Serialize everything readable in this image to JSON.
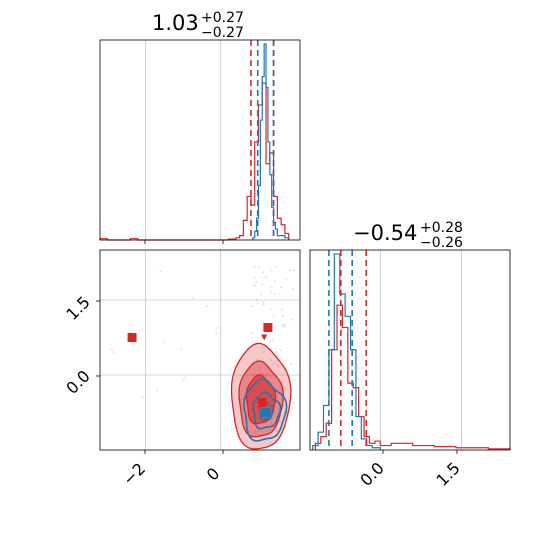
{
  "chart_data": {
    "type": "corner",
    "grid": true,
    "colors": {
      "red": "#d62728",
      "blue": "#1f77b4",
      "grid": "#b0b0b0"
    },
    "parameters": [
      {
        "title_value": "1.03",
        "title_plus": "+0.27",
        "title_minus": "−0.27"
      },
      {
        "title_value": "−0.54",
        "title_plus": "+0.28",
        "title_minus": "−0.26"
      }
    ],
    "panels": {
      "hist_param1": {
        "xlim": [
          -3.2,
          2.1
        ],
        "grid_x": [
          -2,
          0
        ],
        "quantiles_red": [
          0.8,
          1.4
        ],
        "quantiles_blue": [
          0.98,
          1.4
        ],
        "series": [
          {
            "name": "",
            "color": "red",
            "bins": [
              [
                -3.2,
                -3.0,
                0.006
              ],
              [
                -2.4,
                -2.2,
                0.006
              ],
              [
                0.2,
                0.4,
                0.004
              ],
              [
                0.4,
                0.5,
                0.01
              ],
              [
                0.5,
                0.6,
                0.02
              ],
              [
                0.6,
                0.7,
                0.09
              ],
              [
                0.7,
                0.8,
                0.2
              ],
              [
                0.8,
                0.9,
                0.16
              ],
              [
                0.9,
                1.0,
                0.45
              ],
              [
                1.0,
                1.1,
                0.62
              ],
              [
                1.1,
                1.2,
                0.72
              ],
              [
                1.2,
                1.3,
                0.35
              ],
              [
                1.3,
                1.4,
                0.4
              ],
              [
                1.4,
                1.5,
                0.2
              ],
              [
                1.5,
                1.6,
                0.1
              ],
              [
                1.6,
                1.7,
                0.07
              ],
              [
                1.7,
                1.8,
                0.03
              ]
            ]
          },
          {
            "name": "",
            "color": "blue",
            "bins": [
              [
                0.85,
                0.9,
                0.01
              ],
              [
                0.9,
                0.95,
                0.04
              ],
              [
                0.95,
                1.0,
                0.1
              ],
              [
                1.0,
                1.05,
                0.25
              ],
              [
                1.05,
                1.1,
                0.55
              ],
              [
                1.1,
                1.15,
                0.75
              ],
              [
                1.15,
                1.2,
                0.9
              ],
              [
                1.2,
                1.25,
                0.7
              ],
              [
                1.25,
                1.3,
                0.45
              ],
              [
                1.3,
                1.35,
                0.3
              ],
              [
                1.35,
                1.4,
                0.15
              ],
              [
                1.4,
                1.45,
                0.08
              ],
              [
                1.45,
                1.5,
                0.05
              ],
              [
                1.5,
                1.6,
                0.02
              ],
              [
                1.6,
                1.7,
                0.02
              ],
              [
                1.7,
                1.8,
                0.01
              ]
            ]
          }
        ]
      },
      "hist_param2": {
        "xlim": [
          -1.3,
          2.4
        ],
        "grid_x": [
          0.0,
          1.5
        ],
        "quantiles_red": [
          -0.73,
          -0.26
        ],
        "quantiles_blue": [
          -0.95,
          -0.52
        ],
        "series": [
          {
            "name": "",
            "color": "red",
            "bins": [
              [
                -1.2,
                -1.1,
                0.03
              ],
              [
                -1.1,
                -1.0,
                0.06
              ],
              [
                -1.0,
                -0.9,
                0.12
              ],
              [
                -0.9,
                -0.8,
                0.45
              ],
              [
                -0.8,
                -0.7,
                0.65
              ],
              [
                -0.7,
                -0.6,
                0.55
              ],
              [
                -0.6,
                -0.5,
                0.3
              ],
              [
                -0.5,
                -0.4,
                0.28
              ],
              [
                -0.4,
                -0.3,
                0.15
              ],
              [
                -0.3,
                -0.2,
                0.06
              ],
              [
                -0.2,
                -0.1,
                0.03
              ],
              [
                -0.1,
                0.0,
                0.04
              ],
              [
                0.0,
                0.2,
                0.02
              ],
              [
                0.2,
                0.6,
                0.03
              ],
              [
                0.6,
                1.0,
                0.02
              ],
              [
                1.0,
                1.4,
                0.015
              ],
              [
                1.4,
                2.0,
                0.01
              ],
              [
                2.0,
                2.4,
                0.005
              ]
            ]
          },
          {
            "name": "",
            "color": "blue",
            "bins": [
              [
                -1.25,
                -1.15,
                0.02
              ],
              [
                -1.15,
                -1.05,
                0.08
              ],
              [
                -1.05,
                -0.95,
                0.2
              ],
              [
                -0.95,
                -0.85,
                0.45
              ],
              [
                -0.85,
                -0.75,
                0.88
              ],
              [
                -0.75,
                -0.65,
                0.7
              ],
              [
                -0.65,
                -0.55,
                0.6
              ],
              [
                -0.55,
                -0.45,
                0.45
              ],
              [
                -0.45,
                -0.35,
                0.15
              ],
              [
                -0.35,
                -0.25,
                0.05
              ],
              [
                -0.25,
                -0.15,
                0.02
              ],
              [
                -0.15,
                0.0,
                0.01
              ]
            ]
          }
        ]
      },
      "scatter": {
        "xlim": [
          -3.2,
          2.1
        ],
        "ylim": [
          -1.5,
          2.5
        ],
        "grid_x": [
          -2,
          0
        ],
        "grid_y": [
          0.0,
          1.5
        ],
        "x_ticks": [
          "−2",
          "0"
        ],
        "y_ticks": [
          "0.0",
          "1.5"
        ],
        "markers": [
          {
            "x": -2.35,
            "y": 0.75,
            "color": "red",
            "shape": "square"
          },
          {
            "x": 1.25,
            "y": 0.95,
            "color": "red",
            "shape": "square"
          },
          {
            "x": 1.15,
            "y": 0.75,
            "color": "red",
            "shape": "triangle"
          },
          {
            "x": 1.1,
            "y": -0.55,
            "color": "red",
            "shape": "square"
          },
          {
            "x": 1.2,
            "y": -0.75,
            "color": "blue",
            "shape": "square"
          }
        ],
        "contours_red": [
          {
            "cx": 1.05,
            "cy": -0.45,
            "rx": 0.78,
            "ry": 1.05,
            "fill_opacity": 0.25
          },
          {
            "cx": 1.05,
            "cy": -0.5,
            "rx": 0.58,
            "ry": 0.75,
            "fill_opacity": 0.4
          },
          {
            "cx": 1.05,
            "cy": -0.5,
            "rx": 0.38,
            "ry": 0.48,
            "fill_opacity": 0.6
          }
        ],
        "contours_blue": [
          {
            "cx": 1.15,
            "cy": -0.72,
            "rx": 0.55,
            "ry": 0.6
          },
          {
            "cx": 1.2,
            "cy": -0.72,
            "rx": 0.35,
            "ry": 0.35
          },
          {
            "cx": 1.2,
            "cy": -0.72,
            "rx": 0.18,
            "ry": 0.18
          }
        ]
      },
      "x_bottom_right_ticks": [
        "0.0",
        "1.5"
      ]
    }
  }
}
